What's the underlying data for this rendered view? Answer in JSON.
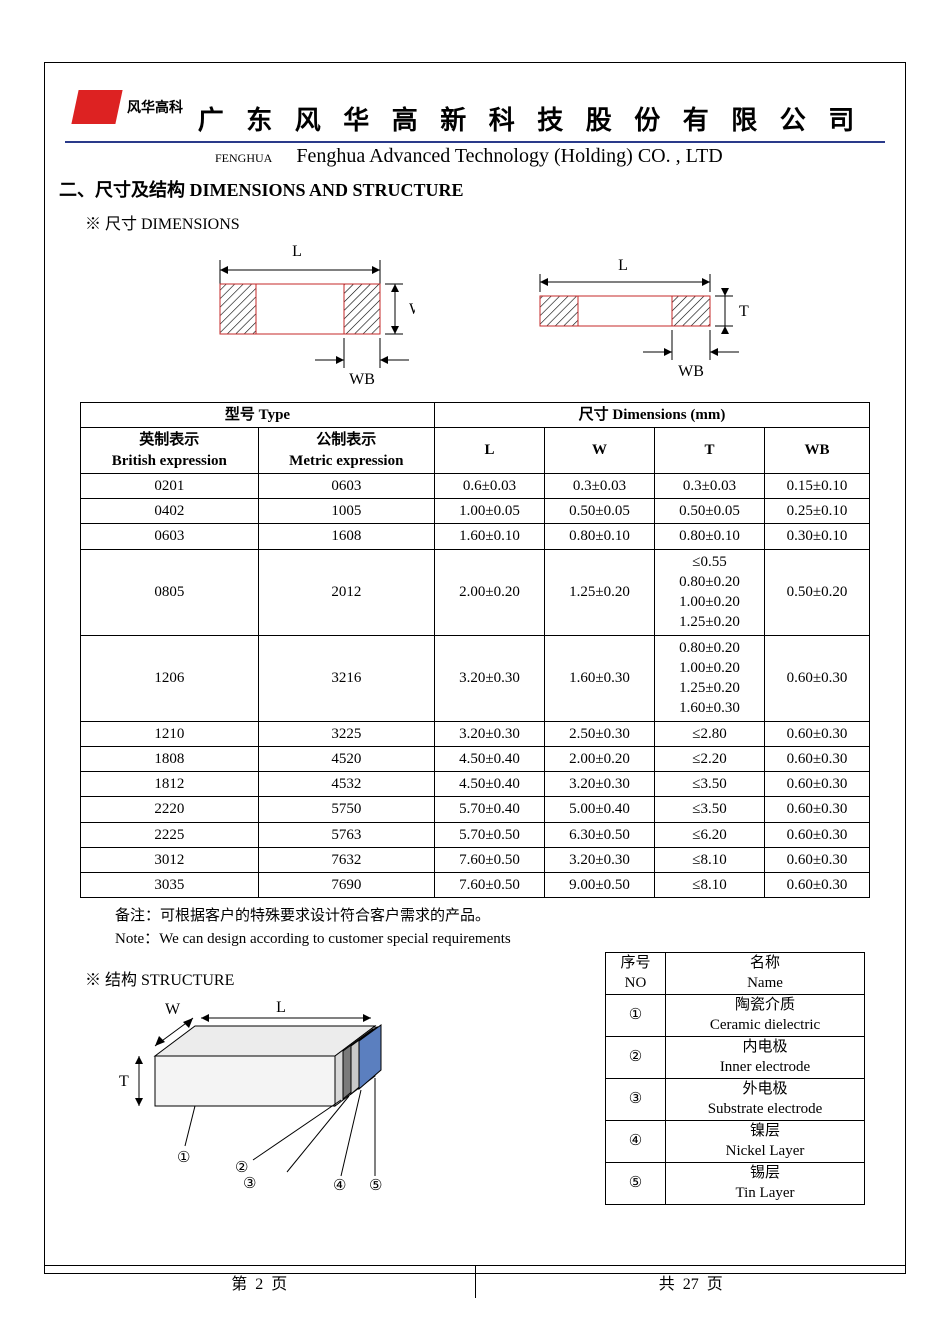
{
  "header": {
    "logo_text": "风华高科",
    "company_cn": "广 东 风 华 高 新 科 技 股 份 有 限 公 司",
    "fenghua_label": "FENGHUA",
    "company_en": "Fenghua Advanced Technology (Holding) CO. , LTD"
  },
  "section": {
    "title": "二、尺寸及结构   DIMENSIONS AND STRUCTURE",
    "dims_sub": "※ 尺寸 DIMENSIONS",
    "struct_sub": "※ 结构 STRUCTURE"
  },
  "diagram_labels": {
    "L": "L",
    "W": "W",
    "T": "T",
    "WB": "WB"
  },
  "dims_table": {
    "header": {
      "type_label": "型号 Type",
      "dims_label": "尺寸     Dimensions     (mm)",
      "british_cn": "英制表示",
      "british_en": "British expression",
      "metric_cn": "公制表示",
      "metric_en": "Metric expression",
      "L": "L",
      "W": "W",
      "T": "T",
      "WB": "WB"
    },
    "rows": [
      {
        "b": "0201",
        "m": "0603",
        "L": "0.6±0.03",
        "W": "0.3±0.03",
        "T": "0.3±0.03",
        "WB": "0.15±0.10"
      },
      {
        "b": "0402",
        "m": "1005",
        "L": "1.00±0.05",
        "W": "0.50±0.05",
        "T": "0.50±0.05",
        "WB": "0.25±0.10"
      },
      {
        "b": "0603",
        "m": "1608",
        "L": "1.60±0.10",
        "W": "0.80±0.10",
        "T": "0.80±0.10",
        "WB": "0.30±0.10"
      },
      {
        "b": "0805",
        "m": "2012",
        "L": "2.00±0.20",
        "W": "1.25±0.20",
        "T": "≤0.55\n0.80±0.20\n1.00±0.20\n1.25±0.20",
        "WB": "0.50±0.20"
      },
      {
        "b": "1206",
        "m": "3216",
        "L": "3.20±0.30",
        "W": "1.60±0.30",
        "T": "0.80±0.20\n1.00±0.20\n1.25±0.20\n1.60±0.30",
        "WB": "0.60±0.30"
      },
      {
        "b": "1210",
        "m": "3225",
        "L": "3.20±0.30",
        "W": "2.50±0.30",
        "T": "≤2.80",
        "WB": "0.60±0.30"
      },
      {
        "b": "1808",
        "m": "4520",
        "L": "4.50±0.40",
        "W": "2.00±0.20",
        "T": "≤2.20",
        "WB": "0.60±0.30"
      },
      {
        "b": "1812",
        "m": "4532",
        "L": "4.50±0.40",
        "W": "3.20±0.30",
        "T": "≤3.50",
        "WB": "0.60±0.30"
      },
      {
        "b": "2220",
        "m": "5750",
        "L": "5.70±0.40",
        "W": "5.00±0.40",
        "T": "≤3.50",
        "WB": "0.60±0.30"
      },
      {
        "b": "2225",
        "m": "5763",
        "L": "5.70±0.50",
        "W": "6.30±0.50",
        "T": "≤6.20",
        "WB": "0.60±0.30"
      },
      {
        "b": "3012",
        "m": "7632",
        "L": "7.60±0.50",
        "W": "3.20±0.30",
        "T": "≤8.10",
        "WB": "0.60±0.30"
      },
      {
        "b": "3035",
        "m": "7690",
        "L": "7.60±0.50",
        "W": "9.00±0.50",
        "T": "≤8.10",
        "WB": "0.60±0.30"
      }
    ]
  },
  "notes": {
    "cn": "备注：可根据客户的特殊要求设计符合客户需求的产品。",
    "en": "Note：We can design according to customer special requirements"
  },
  "struct_diagram": {
    "W": "W",
    "L": "L",
    "T": "T",
    "n1": "①",
    "n2": "②",
    "n3": "③",
    "n4": "④",
    "n5": "⑤"
  },
  "struct_table": {
    "col_no_cn": "序号",
    "col_no_en": "NO",
    "col_name_cn": "名称",
    "col_name_en": "Name",
    "rows": [
      {
        "no": "①",
        "cn": "陶瓷介质",
        "en": "Ceramic   dielectric"
      },
      {
        "no": "②",
        "cn": "内电极",
        "en": "Inner   electrode"
      },
      {
        "no": "③",
        "cn": "外电极",
        "en": "Substrate   electrode"
      },
      {
        "no": "④",
        "cn": "镍层",
        "en": "Nickel Layer"
      },
      {
        "no": "⑤",
        "cn": "锡层",
        "en": "Tin Layer"
      }
    ]
  },
  "footer": {
    "left_a": "第",
    "left_page": "2",
    "left_b": "页",
    "right_a": "共",
    "right_total": "27",
    "right_b": "页"
  },
  "colors": {
    "blue_line": "#2a3a8a",
    "logo_red": "#d22222",
    "diagram_red": "#c62828",
    "struct_blue": "#5b7fbf",
    "struct_gray": "#7a7a7a"
  }
}
